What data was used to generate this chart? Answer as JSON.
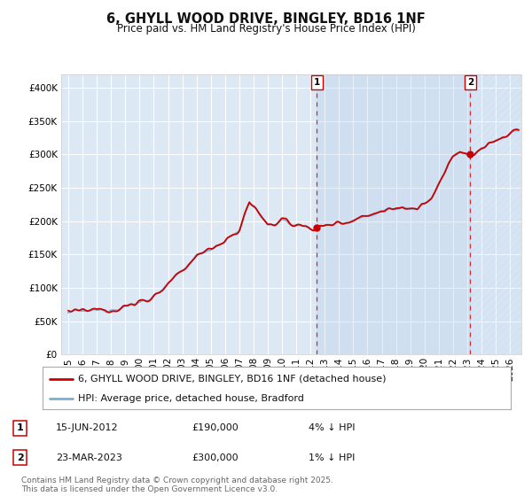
{
  "title": "6, GHYLL WOOD DRIVE, BINGLEY, BD16 1NF",
  "subtitle": "Price paid vs. HM Land Registry's House Price Index (HPI)",
  "ylim": [
    0,
    420000
  ],
  "yticks": [
    0,
    50000,
    100000,
    150000,
    200000,
    250000,
    300000,
    350000,
    400000
  ],
  "xlim_start": 1994.5,
  "xlim_end": 2026.8,
  "bg_color": "#ffffff",
  "plot_bg_color": "#dde8f5",
  "grid_color": "#ffffff",
  "red_line_color": "#cc0000",
  "blue_line_color": "#7ab0d4",
  "sale1_year": 2012.45,
  "sale1_price": 190000,
  "sale2_year": 2023.22,
  "sale2_price": 300000,
  "sale1_date": "15-JUN-2012",
  "sale1_hpi_diff": "4% ↓ HPI",
  "sale2_date": "23-MAR-2023",
  "sale2_hpi_diff": "1% ↓ HPI",
  "legend_line1": "6, GHYLL WOOD DRIVE, BINGLEY, BD16 1NF (detached house)",
  "legend_line2": "HPI: Average price, detached house, Bradford",
  "footer": "Contains HM Land Registry data © Crown copyright and database right 2025.\nThis data is licensed under the Open Government Licence v3.0.",
  "title_fontsize": 10.5,
  "subtitle_fontsize": 8.5,
  "tick_fontsize": 7.5,
  "legend_fontsize": 8,
  "footer_fontsize": 6.5,
  "annot_fontsize": 8
}
